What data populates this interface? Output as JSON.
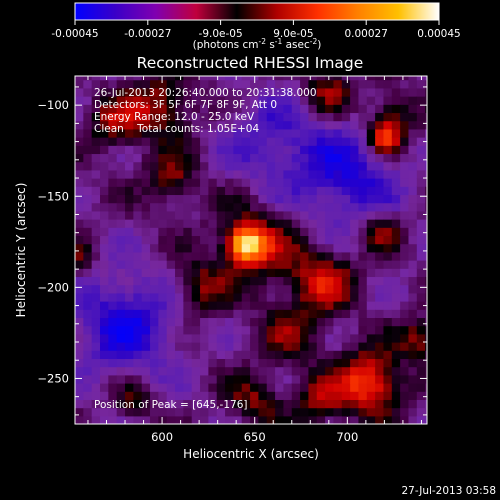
{
  "colorbar": {
    "ticks": [
      "-0.00045",
      "-0.00027",
      "-9.0e-05",
      "9.0e-05",
      "0.00027",
      "0.00045"
    ],
    "tick_values": [
      -0.00045,
      -0.00027,
      -9e-05,
      9e-05,
      0.00027,
      0.00045
    ],
    "range": [
      -0.00045,
      0.00045
    ],
    "units_main": "(photons cm",
    "units_sup1": "-2",
    "units_mid": " s",
    "units_sup2": "-1",
    "units_end": " asec",
    "units_sup3": "-2",
    "units_close": ")",
    "stops": [
      "#0000ff",
      "#3a00c8",
      "#8000b0",
      "#c0003c",
      "#000000",
      "#b00000",
      "#ff3000",
      "#ff8000",
      "#ffc000",
      "#ffffff"
    ]
  },
  "chart_data": {
    "type": "heatmap",
    "title": "Reconstructed RHESSI Image",
    "xlabel": "Heliocentric X (arcsec)",
    "ylabel": "Heliocentric Y (arcsec)",
    "xlim": [
      553,
      743
    ],
    "ylim": [
      -275,
      -84
    ],
    "xticks": [
      600,
      650,
      700
    ],
    "yticks": [
      -100,
      -150,
      -200,
      -250
    ],
    "annotations": {
      "time": "26-Jul-2013 20:26:40.000 to 20:31:38.000",
      "detectors": "Detectors: 3F 5F 6F 7F 8F 9F, Att 0",
      "energy": "Energy Range: 12.0 - 25.0 keV",
      "clean": "Clean    Total counts: 1.05E+04",
      "peak": "Position of Peak = [645,-176]"
    },
    "peak": {
      "x": 645,
      "y": -176
    },
    "sources": [
      {
        "x": 645,
        "y": -176,
        "amp": 1.0,
        "sigma": 7
      },
      {
        "x": 653,
        "y": -177,
        "amp": 0.45,
        "sigma": 16
      },
      {
        "x": 620,
        "y": -200,
        "amp": 0.45,
        "sigma": 10
      },
      {
        "x": 687,
        "y": -196,
        "amp": 0.55,
        "sigma": 12
      },
      {
        "x": 712,
        "y": -252,
        "amp": 0.8,
        "sigma": 12
      },
      {
        "x": 685,
        "y": -262,
        "amp": 0.45,
        "sigma": 9
      },
      {
        "x": 670,
        "y": -225,
        "amp": 0.35,
        "sigma": 12
      },
      {
        "x": 600,
        "y": -100,
        "amp": 0.5,
        "sigma": 12
      },
      {
        "x": 575,
        "y": -110,
        "amp": 0.45,
        "sigma": 10
      },
      {
        "x": 605,
        "y": -140,
        "amp": 0.4,
        "sigma": 10
      },
      {
        "x": 720,
        "y": -118,
        "amp": 0.75,
        "sigma": 6
      },
      {
        "x": 690,
        "y": -92,
        "amp": 0.45,
        "sigma": 9
      },
      {
        "x": 725,
        "y": -105,
        "amp": 0.45,
        "sigma": 9
      },
      {
        "x": 740,
        "y": -228,
        "amp": 0.45,
        "sigma": 8
      },
      {
        "x": 585,
        "y": -262,
        "amp": 0.35,
        "sigma": 8
      },
      {
        "x": 650,
        "y": -262,
        "amp": 0.4,
        "sigma": 10
      },
      {
        "x": 718,
        "y": -168,
        "amp": 0.45,
        "sigma": 8
      },
      {
        "x": 555,
        "y": -185,
        "amp": 0.3,
        "sigma": 7
      },
      {
        "x": 700,
        "y": -140,
        "amp": -0.5,
        "sigma": 20
      },
      {
        "x": 580,
        "y": -220,
        "amp": -0.55,
        "sigma": 20
      },
      {
        "x": 660,
        "y": -120,
        "amp": -0.35,
        "sigma": 18
      }
    ]
  },
  "footer": {
    "timestamp": "27-Jul-2013 03:58"
  }
}
